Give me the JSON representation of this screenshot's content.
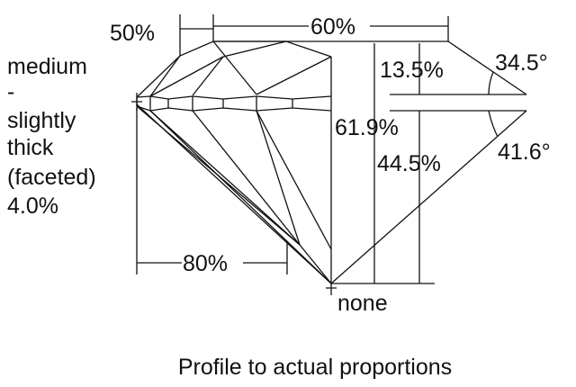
{
  "diagram": {
    "girdle_label": [
      "medium",
      "-",
      "slightly",
      "thick",
      "(faceted)",
      "4.0%"
    ],
    "star_length": "50%",
    "table": "60%",
    "crown_height": "13.5%",
    "crown_angle": "34.5°",
    "total_depth": "61.9%",
    "pavilion_depth": "44.5%",
    "pavilion_angle": "41.6°",
    "lower_half_length": "80%",
    "culet": "none",
    "caption": "Profile to actual proportions"
  }
}
